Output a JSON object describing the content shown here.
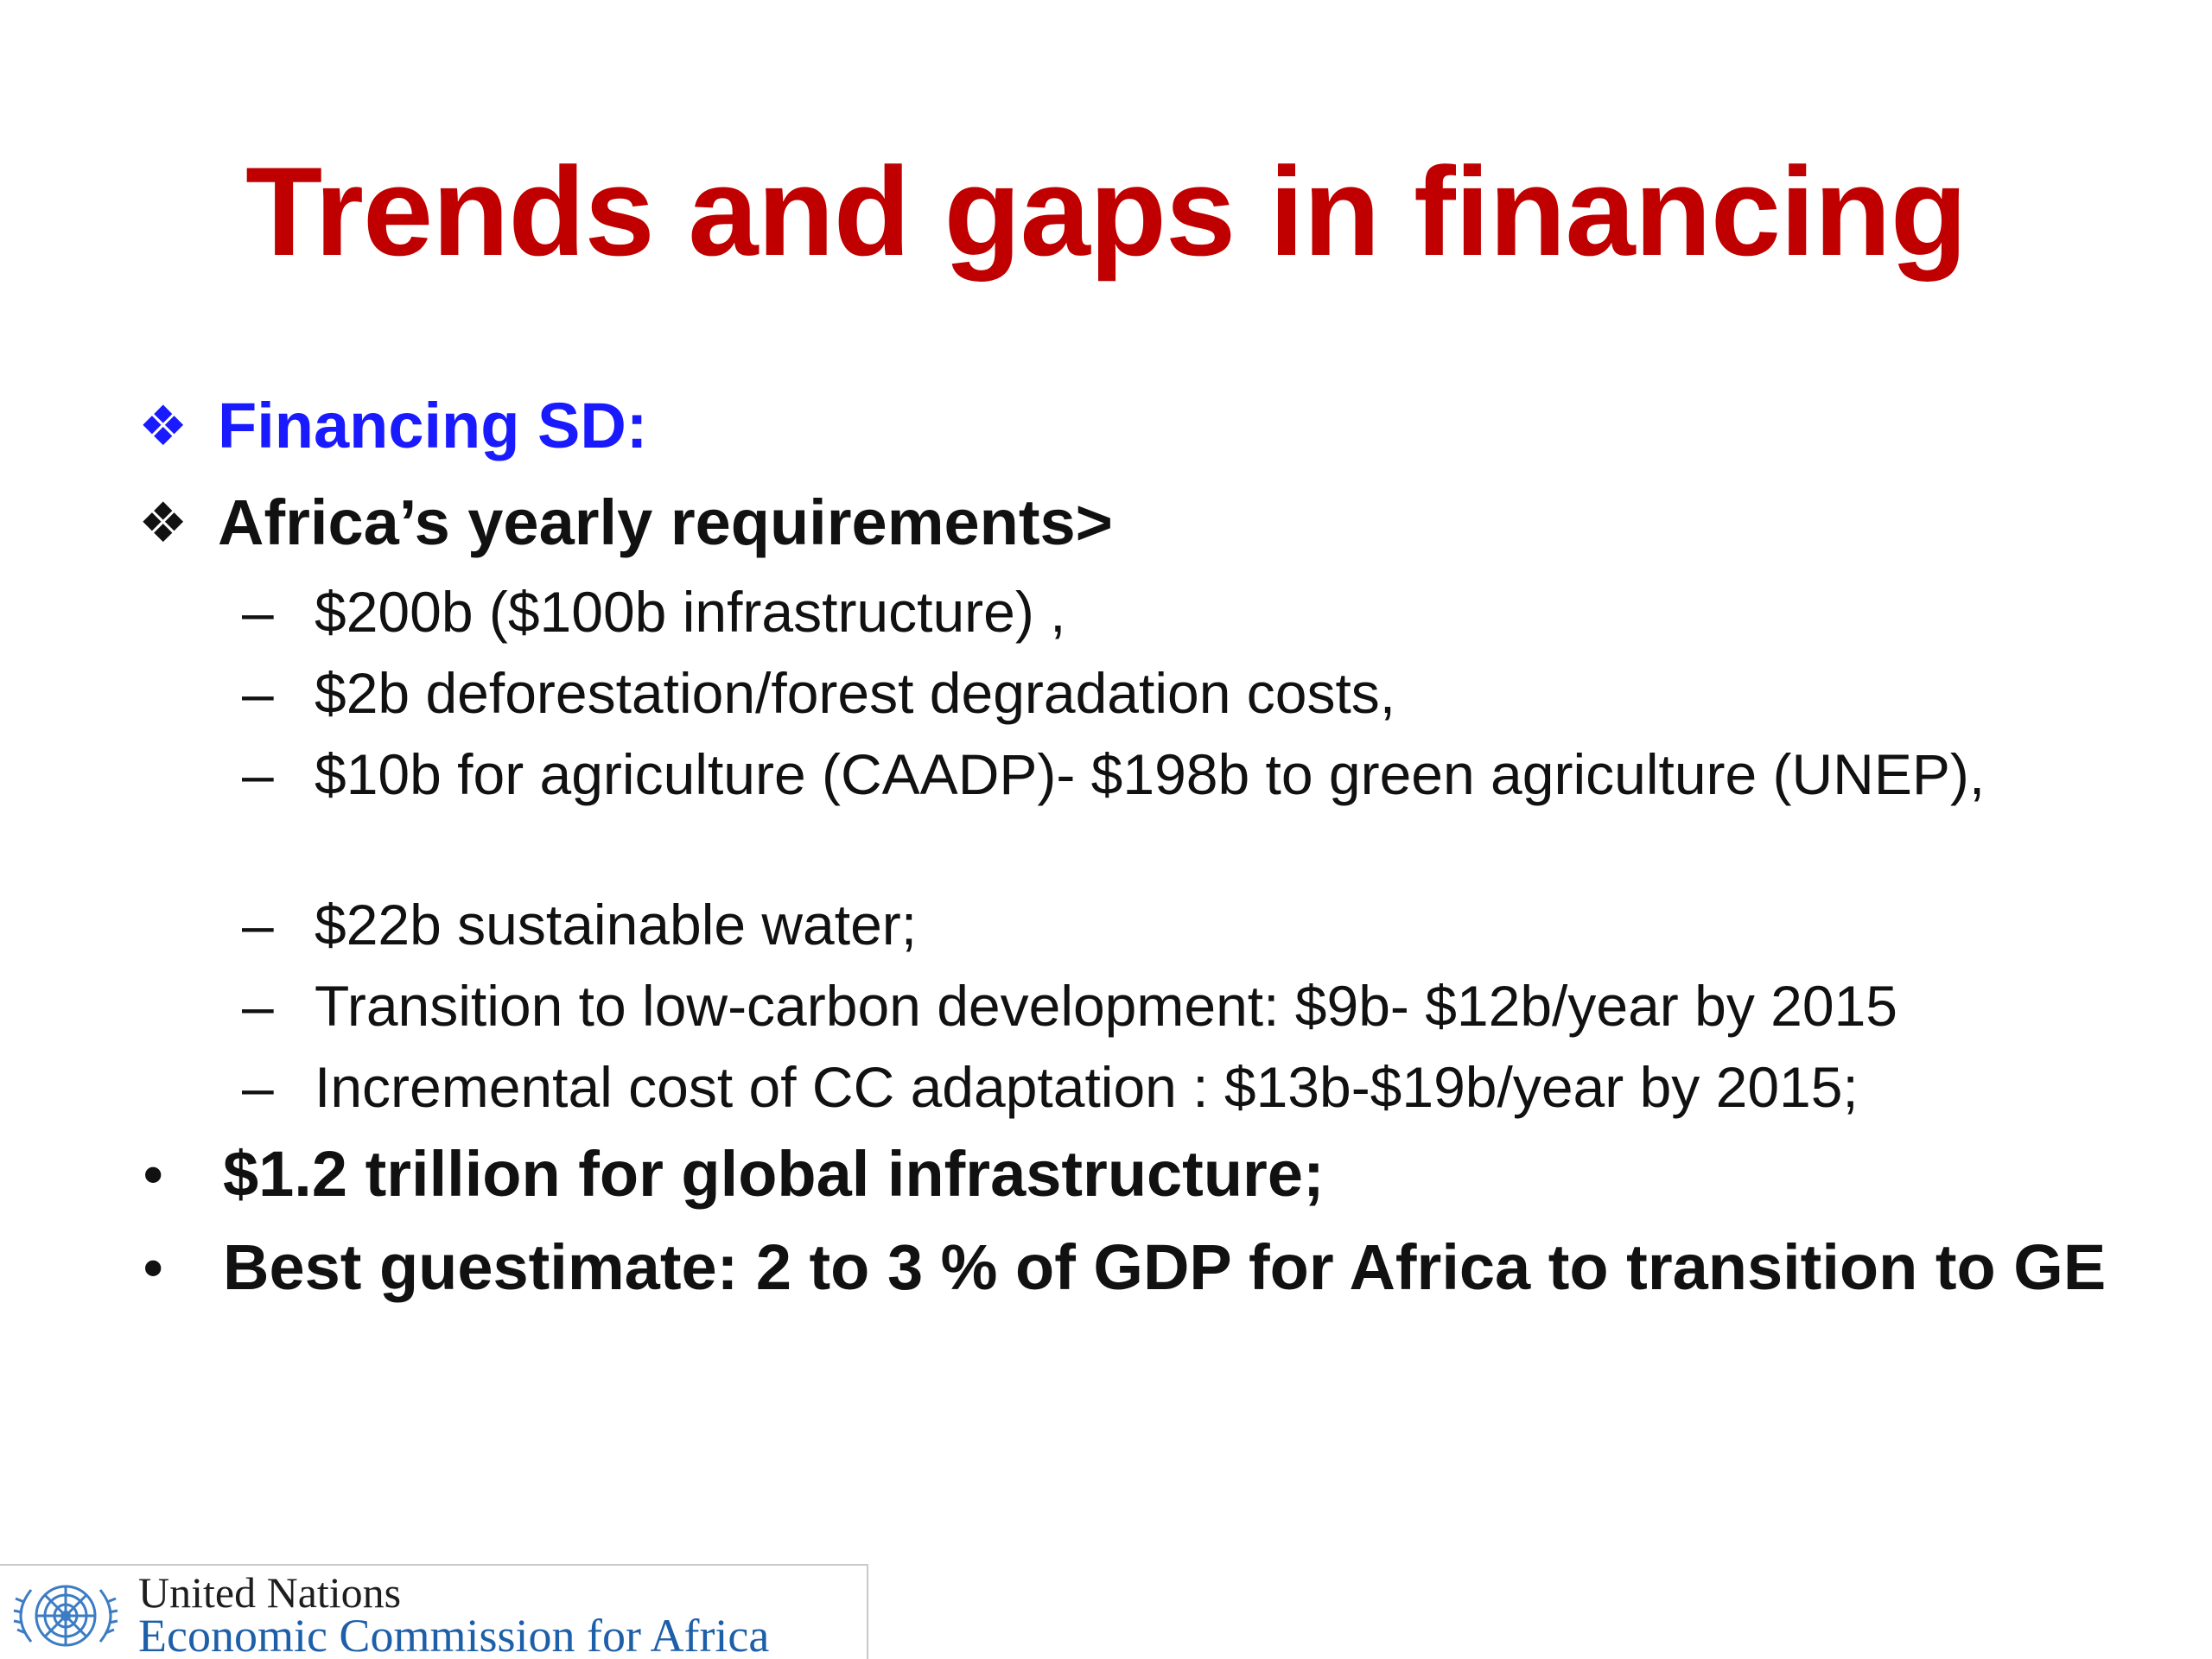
{
  "slide": {
    "title": "Trends and gaps in financing",
    "bullets": [
      {
        "marker": "❖",
        "text": "Financing SD:"
      },
      {
        "marker": "❖",
        "text": "Africa’s yearly requirements>"
      }
    ],
    "sub_items": [
      {
        "marker": "–",
        "text": "$200b ($100b infrastructure) ,"
      },
      {
        "marker": "–",
        "text": "$2b deforestation/forest degradation costs,"
      },
      {
        "marker": "–",
        "text": "$10b for agriculture (CAADP)- $198b to green agriculture (UNEP),"
      },
      {
        "marker": "–",
        "text": "$22b sustainable water;"
      },
      {
        "marker": "–",
        "text": "Transition to low-carbon development: $9b- $12b/year by 2015"
      },
      {
        "marker": "–",
        "text": "Incremental cost of CC adaptation : $13b-$19b/year by 2015;"
      }
    ],
    "round_bullets": [
      {
        "marker": "•",
        "text": "$1.2 trillion for global infrastructure;"
      },
      {
        "marker": "•",
        "text": "Best guestimate: 2 to 3 % of GDP for Africa to transition to GE"
      }
    ],
    "colors": {
      "title": "#c00000",
      "highlight": "#1a1aff",
      "body": "#111111",
      "logo_text": "#1d5fa8"
    }
  },
  "logo": {
    "line1": "United Nations",
    "line2": "Economic Commission for Africa",
    "icon": "un-emblem-icon"
  }
}
